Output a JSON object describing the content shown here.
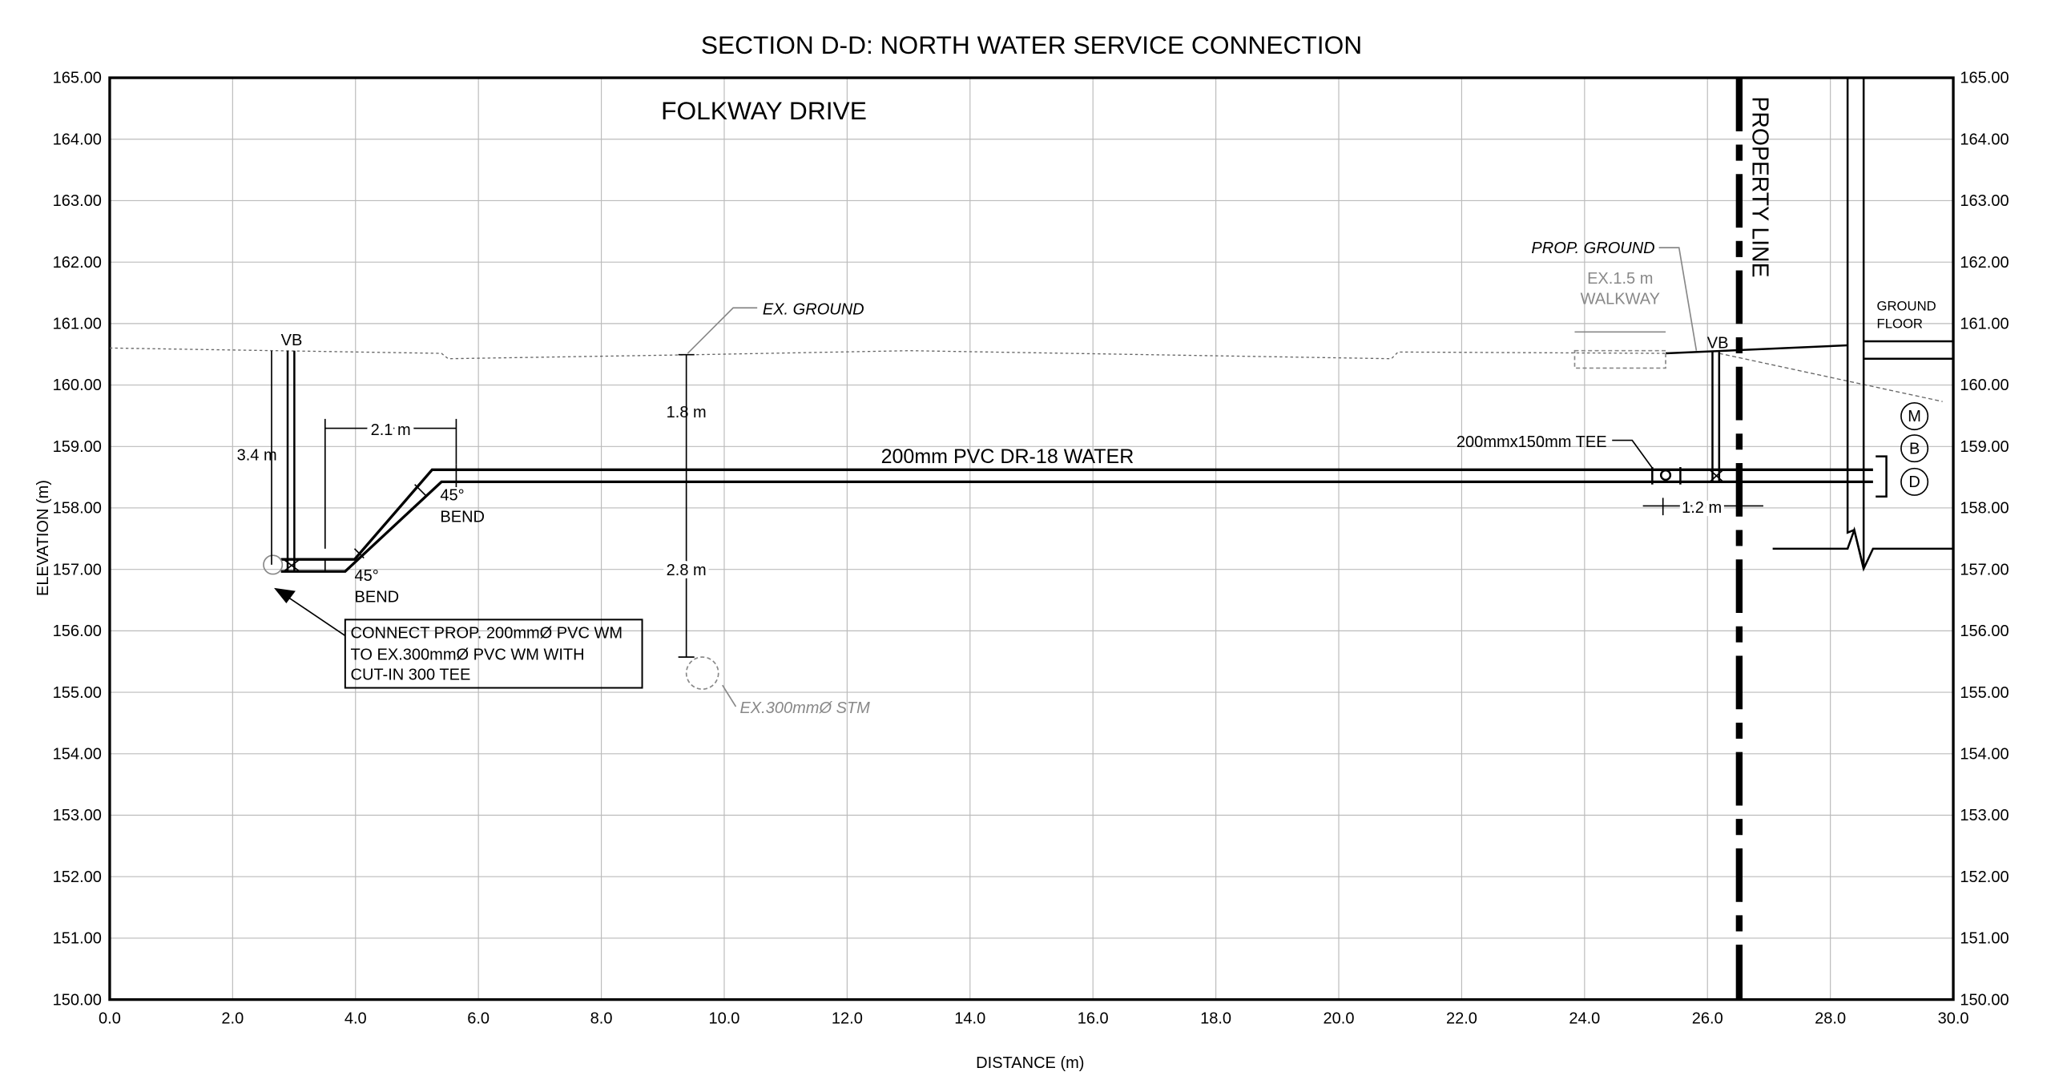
{
  "title": "SECTION D-D: NORTH WATER SERVICE CONNECTION",
  "x_axis": {
    "label": "DISTANCE (m)",
    "lim": [
      0,
      30
    ],
    "ticks": [
      {
        "value": 0,
        "label": "0.0"
      },
      {
        "value": 2,
        "label": "2.0"
      },
      {
        "value": 4,
        "label": "4.0"
      },
      {
        "value": 6,
        "label": "6.0"
      },
      {
        "value": 8,
        "label": "8.0"
      },
      {
        "value": 10,
        "label": "10.0"
      },
      {
        "value": 12,
        "label": "12.0"
      },
      {
        "value": 14,
        "label": "14.0"
      },
      {
        "value": 16,
        "label": "16.0"
      },
      {
        "value": 18,
        "label": "18.0"
      },
      {
        "value": 20,
        "label": "20.0"
      },
      {
        "value": 22,
        "label": "22.0"
      },
      {
        "value": 24,
        "label": "24.0"
      },
      {
        "value": 26,
        "label": "26.0"
      },
      {
        "value": 28,
        "label": "28.0"
      },
      {
        "value": 30,
        "label": "30.0"
      }
    ]
  },
  "y_axis": {
    "label": "ELEVATION (m)",
    "lim": [
      150,
      165
    ],
    "ticks": [
      {
        "value": 150,
        "label": "150.00"
      },
      {
        "value": 151,
        "label": "151.00"
      },
      {
        "value": 152,
        "label": "152.00"
      },
      {
        "value": 153,
        "label": "153.00"
      },
      {
        "value": 154,
        "label": "154.00"
      },
      {
        "value": 155,
        "label": "155.00"
      },
      {
        "value": 156,
        "label": "156.00"
      },
      {
        "value": 157,
        "label": "157.00"
      },
      {
        "value": 158,
        "label": "158.00"
      },
      {
        "value": 159,
        "label": "159.00"
      },
      {
        "value": 160,
        "label": "160.00"
      },
      {
        "value": 161,
        "label": "161.00"
      },
      {
        "value": 162,
        "label": "162.00"
      },
      {
        "value": 163,
        "label": "163.00"
      },
      {
        "value": 164,
        "label": "164.00"
      },
      {
        "value": 165,
        "label": "165.00"
      }
    ]
  },
  "labels": {
    "street": "FOLKWAY DRIVE",
    "ex_ground": "EX. GROUND",
    "cover_top": "1.8 m",
    "pipe": "200mm PVC DR-18 WATER",
    "vb_left": "VB",
    "vb_right": "VB",
    "dim_vertical": "3.4 m",
    "dim_horizontal": "2.1 m",
    "bend_upper": [
      "45°",
      "BEND"
    ],
    "bend_lower": [
      "45°",
      "BEND"
    ],
    "clearance": "2.8 m",
    "callout": [
      "CONNECT PROP. 200mmØ PVC WM",
      "TO EX.300mmØ PVC WM WITH",
      "CUT-IN 300 TEE"
    ],
    "storm": "EX.300mmØ STM",
    "prop_ground": "PROP. GROUND",
    "walkway": [
      "EX.1.5 m",
      "WALKWAY"
    ],
    "property_line": "PROPERTY LINE",
    "ground_floor": [
      "GROUND",
      "FLOOR"
    ],
    "tee": "200mmx150mm TEE",
    "tee_dim": "1.2 m",
    "services": [
      "M",
      "B",
      "D"
    ]
  }
}
